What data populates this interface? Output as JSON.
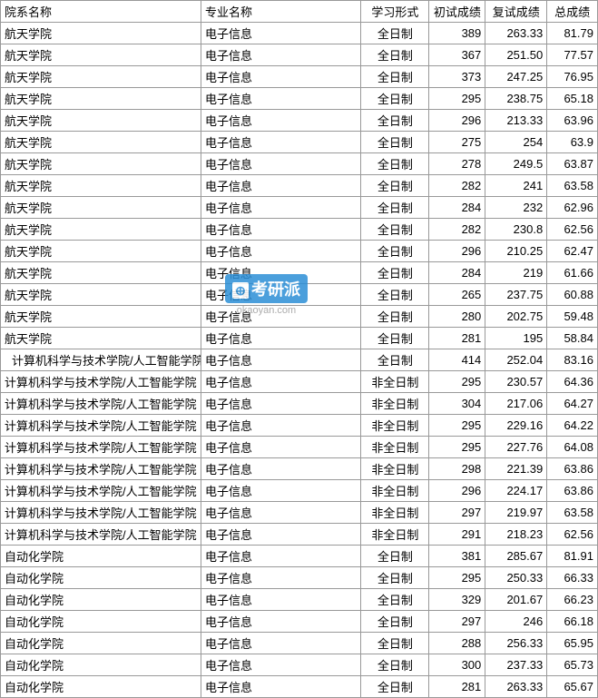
{
  "headers": {
    "dept": "院系名称",
    "major": "专业名称",
    "form": "学习形式",
    "score1": "初试成绩",
    "score2": "复试成绩",
    "total": "总成绩"
  },
  "watermark": {
    "icon": "⊕",
    "text": "考研派",
    "url": "okaoyan.com"
  },
  "rows": [
    {
      "dept": "航天学院",
      "major": "电子信息",
      "form": "全日制",
      "s1": "389",
      "s2": "263.33",
      "t": "81.79"
    },
    {
      "dept": "航天学院",
      "major": "电子信息",
      "form": "全日制",
      "s1": "367",
      "s2": "251.50",
      "t": "77.57"
    },
    {
      "dept": "航天学院",
      "major": "电子信息",
      "form": "全日制",
      "s1": "373",
      "s2": "247.25",
      "t": "76.95"
    },
    {
      "dept": "航天学院",
      "major": "电子信息",
      "form": "全日制",
      "s1": "295",
      "s2": "238.75",
      "t": "65.18"
    },
    {
      "dept": "航天学院",
      "major": "电子信息",
      "form": "全日制",
      "s1": "296",
      "s2": "213.33",
      "t": "63.96"
    },
    {
      "dept": "航天学院",
      "major": "电子信息",
      "form": "全日制",
      "s1": "275",
      "s2": "254",
      "t": "63.9"
    },
    {
      "dept": "航天学院",
      "major": "电子信息",
      "form": "全日制",
      "s1": "278",
      "s2": "249.5",
      "t": "63.87"
    },
    {
      "dept": "航天学院",
      "major": "电子信息",
      "form": "全日制",
      "s1": "282",
      "s2": "241",
      "t": "63.58"
    },
    {
      "dept": "航天学院",
      "major": "电子信息",
      "form": "全日制",
      "s1": "284",
      "s2": "232",
      "t": "62.96"
    },
    {
      "dept": "航天学院",
      "major": "电子信息",
      "form": "全日制",
      "s1": "282",
      "s2": "230.8",
      "t": "62.56"
    },
    {
      "dept": "航天学院",
      "major": "电子信息",
      "form": "全日制",
      "s1": "296",
      "s2": "210.25",
      "t": "62.47"
    },
    {
      "dept": "航天学院",
      "major": "电子信息",
      "form": "全日制",
      "s1": "284",
      "s2": "219",
      "t": "61.66"
    },
    {
      "dept": "航天学院",
      "major": "电子信息",
      "form": "全日制",
      "s1": "265",
      "s2": "237.75",
      "t": "60.88"
    },
    {
      "dept": "航天学院",
      "major": "电子信息",
      "form": "全日制",
      "s1": "280",
      "s2": "202.75",
      "t": "59.48"
    },
    {
      "dept": "航天学院",
      "major": "电子信息",
      "form": "全日制",
      "s1": "281",
      "s2": "195",
      "t": "58.84"
    },
    {
      "dept": "计算机科学与技术学院/人工智能学院",
      "indent": true,
      "major": "电子信息",
      "form": "全日制",
      "s1": "414",
      "s2": "252.04",
      "t": "83.16"
    },
    {
      "dept": "计算机科学与技术学院/人工智能学院",
      "major": "电子信息",
      "form": "非全日制",
      "s1": "295",
      "s2": "230.57",
      "t": "64.36"
    },
    {
      "dept": "计算机科学与技术学院/人工智能学院",
      "major": "电子信息",
      "form": "非全日制",
      "s1": "304",
      "s2": "217.06",
      "t": "64.27"
    },
    {
      "dept": "计算机科学与技术学院/人工智能学院",
      "major": "电子信息",
      "form": "非全日制",
      "s1": "295",
      "s2": "229.16",
      "t": "64.22"
    },
    {
      "dept": "计算机科学与技术学院/人工智能学院",
      "major": "电子信息",
      "form": "非全日制",
      "s1": "295",
      "s2": "227.76",
      "t": "64.08"
    },
    {
      "dept": "计算机科学与技术学院/人工智能学院",
      "major": "电子信息",
      "form": "非全日制",
      "s1": "298",
      "s2": "221.39",
      "t": "63.86"
    },
    {
      "dept": "计算机科学与技术学院/人工智能学院",
      "major": "电子信息",
      "form": "非全日制",
      "s1": "296",
      "s2": "224.17",
      "t": "63.86"
    },
    {
      "dept": "计算机科学与技术学院/人工智能学院",
      "major": "电子信息",
      "form": "非全日制",
      "s1": "297",
      "s2": "219.97",
      "t": "63.58"
    },
    {
      "dept": "计算机科学与技术学院/人工智能学院",
      "major": "电子信息",
      "form": "非全日制",
      "s1": "291",
      "s2": "218.23",
      "t": "62.56"
    },
    {
      "dept": "自动化学院",
      "major": "电子信息",
      "form": "全日制",
      "s1": "381",
      "s2": "285.67",
      "t": "81.91"
    },
    {
      "dept": "自动化学院",
      "major": "电子信息",
      "form": "全日制",
      "s1": "295",
      "s2": "250.33",
      "t": "66.33"
    },
    {
      "dept": "自动化学院",
      "major": "电子信息",
      "form": "全日制",
      "s1": "329",
      "s2": "201.67",
      "t": "66.23"
    },
    {
      "dept": "自动化学院",
      "major": "电子信息",
      "form": "全日制",
      "s1": "297",
      "s2": "246",
      "t": "66.18"
    },
    {
      "dept": "自动化学院",
      "major": "电子信息",
      "form": "全日制",
      "s1": "288",
      "s2": "256.33",
      "t": "65.95"
    },
    {
      "dept": "自动化学院",
      "major": "电子信息",
      "form": "全日制",
      "s1": "300",
      "s2": "237.33",
      "t": "65.73"
    },
    {
      "dept": "自动化学院",
      "major": "电子信息",
      "form": "全日制",
      "s1": "281",
      "s2": "263.33",
      "t": "65.67"
    }
  ]
}
